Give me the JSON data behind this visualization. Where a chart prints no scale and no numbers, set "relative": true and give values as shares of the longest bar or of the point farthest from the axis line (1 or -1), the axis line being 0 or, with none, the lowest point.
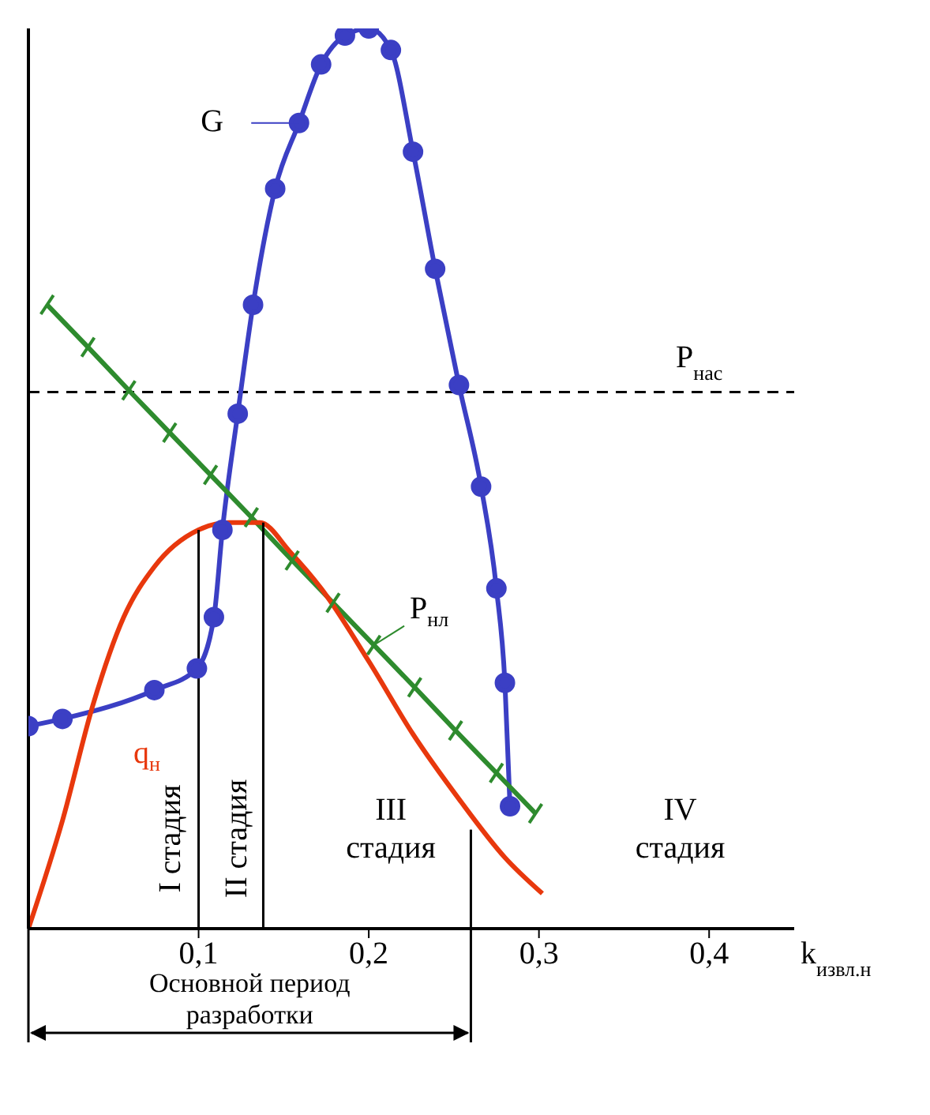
{
  "chart_data": {
    "type": "line",
    "relative": true,
    "xlabel": "k$_{извл.н}$",
    "xlim": [
      0,
      0.45
    ],
    "xticks": [
      {
        "value": 0.1,
        "label": "0,1"
      },
      {
        "value": 0.2,
        "label": "0,2"
      },
      {
        "value": 0.3,
        "label": "0,3"
      },
      {
        "value": 0.4,
        "label": "0,4"
      }
    ],
    "grid": false,
    "series": [
      {
        "name": "G",
        "color": "#3b3fc4",
        "marker": "circle",
        "x": [
          0,
          0.02,
          0.074,
          0.099,
          0.109,
          0.114,
          0.123,
          0.132,
          0.145,
          0.159,
          0.172,
          0.186,
          0.2,
          0.213,
          0.226,
          0.239,
          0.253,
          0.266,
          0.275,
          0.28,
          0.283
        ],
        "values": [
          0.225,
          0.233,
          0.265,
          0.289,
          0.346,
          0.443,
          0.572,
          0.693,
          0.822,
          0.895,
          0.96,
          0.992,
          1,
          0.976,
          0.863,
          0.733,
          0.604,
          0.491,
          0.378,
          0.273,
          0.136
        ]
      },
      {
        "name": "P$_{нл}$",
        "color": "#2e8b2e",
        "marker": "cross",
        "x": [
          0.011,
          0.035,
          0.059,
          0.083,
          0.107,
          0.131,
          0.155,
          0.179,
          0.203,
          0.227,
          0.251,
          0.275,
          0.298
        ],
        "values": [
          0.693,
          0.646,
          0.598,
          0.551,
          0.504,
          0.457,
          0.409,
          0.362,
          0.315,
          0.268,
          0.22,
          0.173,
          0.128
        ]
      },
      {
        "name": "q$_{н}$",
        "color": "#e8380d",
        "marker": "none",
        "x": [
          0,
          0.02,
          0.038,
          0.056,
          0.074,
          0.1,
          0.118,
          0.136,
          0.154,
          0.172,
          0.2,
          0.226,
          0.253,
          0.28,
          0.302
        ],
        "values": [
          0,
          0.12,
          0.249,
          0.346,
          0.402,
          0.443,
          0.451,
          0.451,
          0.418,
          0.378,
          0.297,
          0.216,
          0.144,
          0.079,
          0.039
        ]
      },
      {
        "color": "#000000",
        "marker": "none",
        "x": [
          0.1,
          0.1
        ],
        "values": [
          0,
          0.443
        ]
      },
      {
        "color": "#000000",
        "marker": "none",
        "x": [
          0.138,
          0.138
        ],
        "values": [
          0,
          0.451
        ]
      },
      {
        "color": "#000000",
        "marker": "none",
        "x": [
          0.26,
          0.26
        ],
        "values": [
          0,
          0.11
        ]
      }
    ],
    "ref_lines": [
      {
        "axis": "y",
        "value": 0.596,
        "label": "P$_{нас}$",
        "color": "#000000",
        "line_style": "dashed"
      }
    ],
    "annotations": [
      "I стадия",
      "II стадия",
      "III стадия",
      "IV стадия",
      "Основной период разработки"
    ]
  }
}
